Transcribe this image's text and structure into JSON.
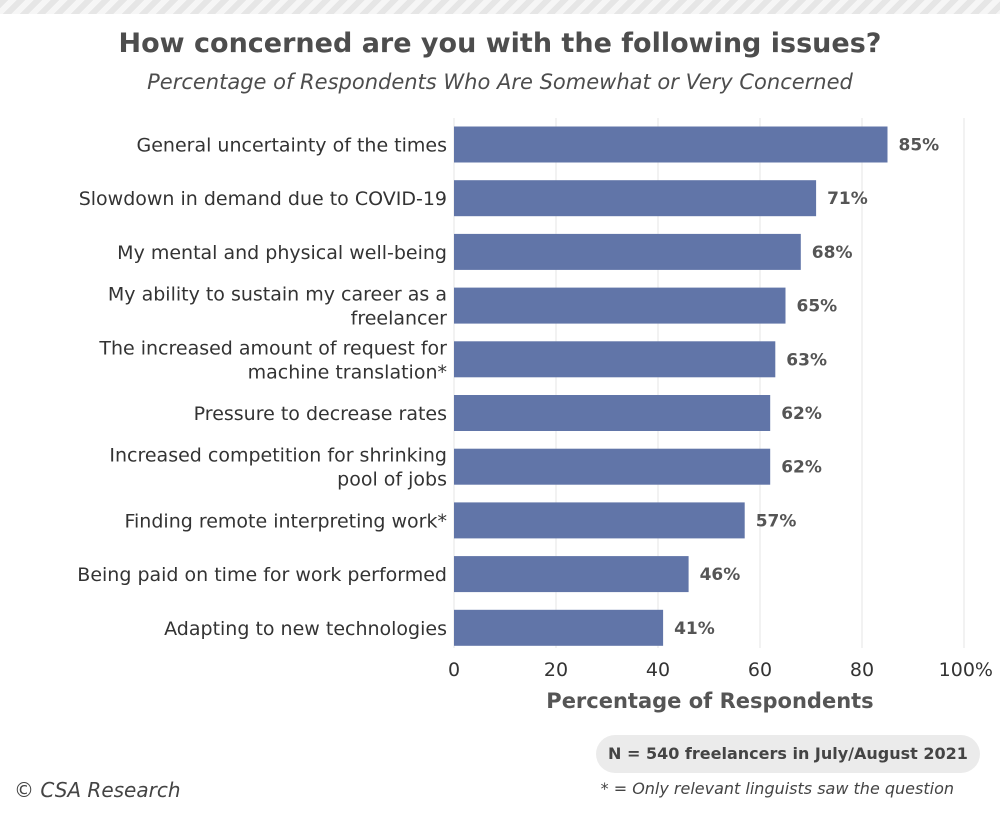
{
  "chart_data": {
    "type": "bar",
    "orientation": "horizontal",
    "title": "How concerned are you with the following issues?",
    "subtitle": "Percentage of Respondents Who Are Somewhat or Very Concerned",
    "categories": [
      "General uncertainty of the times",
      "Slowdown in demand due to COVID-19",
      "My mental and physical well-being",
      "My ability to sustain my career as a freelancer",
      "The increased amount of request for machine translation*",
      "Pressure to decrease rates",
      "Increased competition for shrinking pool of jobs",
      "Finding remote interpreting work*",
      "Being paid on time for work performed",
      "Adapting to new technologies"
    ],
    "category_lines": [
      [
        "General uncertainty of the times"
      ],
      [
        "Slowdown in demand due to COVID-19"
      ],
      [
        "My mental and physical well-being"
      ],
      [
        "My ability to sustain my career as a",
        "freelancer"
      ],
      [
        "The increased amount of request for",
        "machine translation*"
      ],
      [
        "Pressure to decrease rates"
      ],
      [
        "Increased competition for shrinking",
        "pool of jobs"
      ],
      [
        "Finding remote interpreting work*"
      ],
      [
        "Being paid on time for work performed"
      ],
      [
        "Adapting to new technologies"
      ]
    ],
    "values": [
      85,
      71,
      68,
      65,
      63,
      62,
      62,
      57,
      46,
      41
    ],
    "value_labels": [
      "85%",
      "71%",
      "68%",
      "65%",
      "63%",
      "62%",
      "62%",
      "57%",
      "46%",
      "41%"
    ],
    "xlabel": "Percentage of Respondents",
    "ylabel": "",
    "xlim": [
      0,
      100
    ],
    "xticks": [
      "0",
      "20",
      "40",
      "60",
      "80",
      "100%"
    ],
    "grid": true,
    "bar_color": "#6175a8",
    "grid_color": "#e6e6e6"
  },
  "notes": {
    "sample": "N = 540 freelancers in July/August 2021",
    "asterisk": "* = Only relevant linguists saw the question",
    "copyright": "© CSA Research"
  }
}
